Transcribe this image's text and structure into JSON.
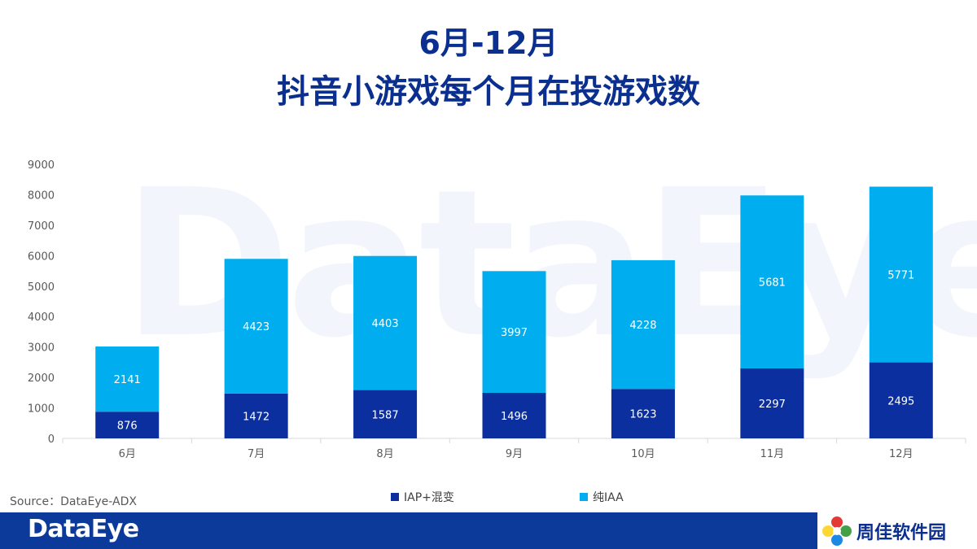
{
  "header": {
    "title_line1": "6月-12月",
    "title_line2": "抖音小游戏每个月在投游戏数"
  },
  "watermark": "DataEye",
  "source": "Source：DataEye-ADX",
  "footer": {
    "brand": "DataEye",
    "partner_name": "周佳软件园"
  },
  "colors": {
    "iap": "#0b2f9e",
    "iaa": "#00aeef",
    "title": "#0b2f8f",
    "footer_bar": "#0b3a9a"
  },
  "chart_data": {
    "type": "bar",
    "stacked": true,
    "categories": [
      "6月",
      "7月",
      "8月",
      "9月",
      "10月",
      "11月",
      "12月"
    ],
    "series": [
      {
        "name": "IAP+混变",
        "values": [
          876,
          1472,
          1587,
          1496,
          1623,
          2297,
          2495
        ]
      },
      {
        "name": "纯IAA",
        "values": [
          2141,
          4423,
          4403,
          3997,
          4228,
          5681,
          5771
        ]
      }
    ],
    "ylim": [
      0,
      9000
    ],
    "yticks": [
      0,
      1000,
      2000,
      3000,
      4000,
      5000,
      6000,
      7000,
      8000,
      9000
    ],
    "grid": false,
    "legend": "bottom"
  }
}
